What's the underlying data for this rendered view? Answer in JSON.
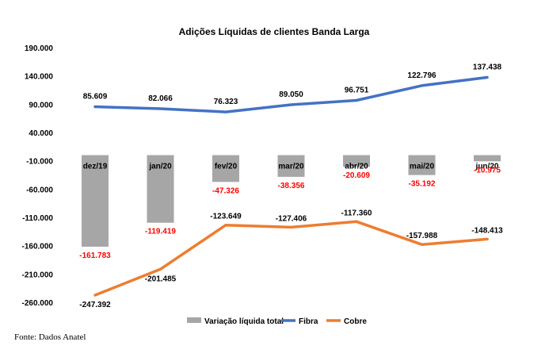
{
  "chart_data": {
    "type": "bar+line",
    "title": "Adições Líquidas de clientes Banda Larga",
    "categories": [
      "dez/19",
      "jan/20",
      "fev/20",
      "mar/20",
      "abr/20",
      "mai/20",
      "jun/20"
    ],
    "ylim": [
      -260000,
      190000
    ],
    "yticks": [
      190000,
      140000,
      90000,
      40000,
      -10000,
      -60000,
      -110000,
      -160000,
      -210000,
      -260000
    ],
    "ytick_labels": [
      "190.000",
      "140.000",
      "90.000",
      "40.000",
      "-10.000",
      "-60.000",
      "-110.000",
      "-160.000",
      "-210.000",
      "-260.000"
    ],
    "grid": false,
    "legend_position": "bottom",
    "series": [
      {
        "name": "Variação líquida total",
        "type": "bar",
        "color": "#a6a6a6",
        "label_color": "#ff0000",
        "values": [
          -161783,
          -119419,
          -47326,
          -38356,
          -20609,
          -35192,
          -10975
        ],
        "labels": [
          "-161.783",
          "-119.419",
          "-47.326",
          "-38.356",
          "-20.609",
          "-35.192",
          "-10.975"
        ]
      },
      {
        "name": "Fibra",
        "type": "line",
        "color": "#4472c4",
        "label_color": "#000000",
        "values": [
          85609,
          82066,
          76323,
          89050,
          96751,
          122796,
          137438
        ],
        "labels": [
          "85.609",
          "82.066",
          "76.323",
          "89.050",
          "96.751",
          "122.796",
          "137.438"
        ]
      },
      {
        "name": "Cobre",
        "type": "line",
        "color": "#ed7d31",
        "label_color": "#000000",
        "values": [
          -247392,
          -201485,
          -123649,
          -127406,
          -117360,
          -157988,
          -148413
        ],
        "labels": [
          "-247.392",
          "-201.485",
          "-123.649",
          "-127.406",
          "-117.360",
          "-157.988",
          "-148.413"
        ]
      }
    ]
  },
  "source": "Fonte: Dados Anatel"
}
